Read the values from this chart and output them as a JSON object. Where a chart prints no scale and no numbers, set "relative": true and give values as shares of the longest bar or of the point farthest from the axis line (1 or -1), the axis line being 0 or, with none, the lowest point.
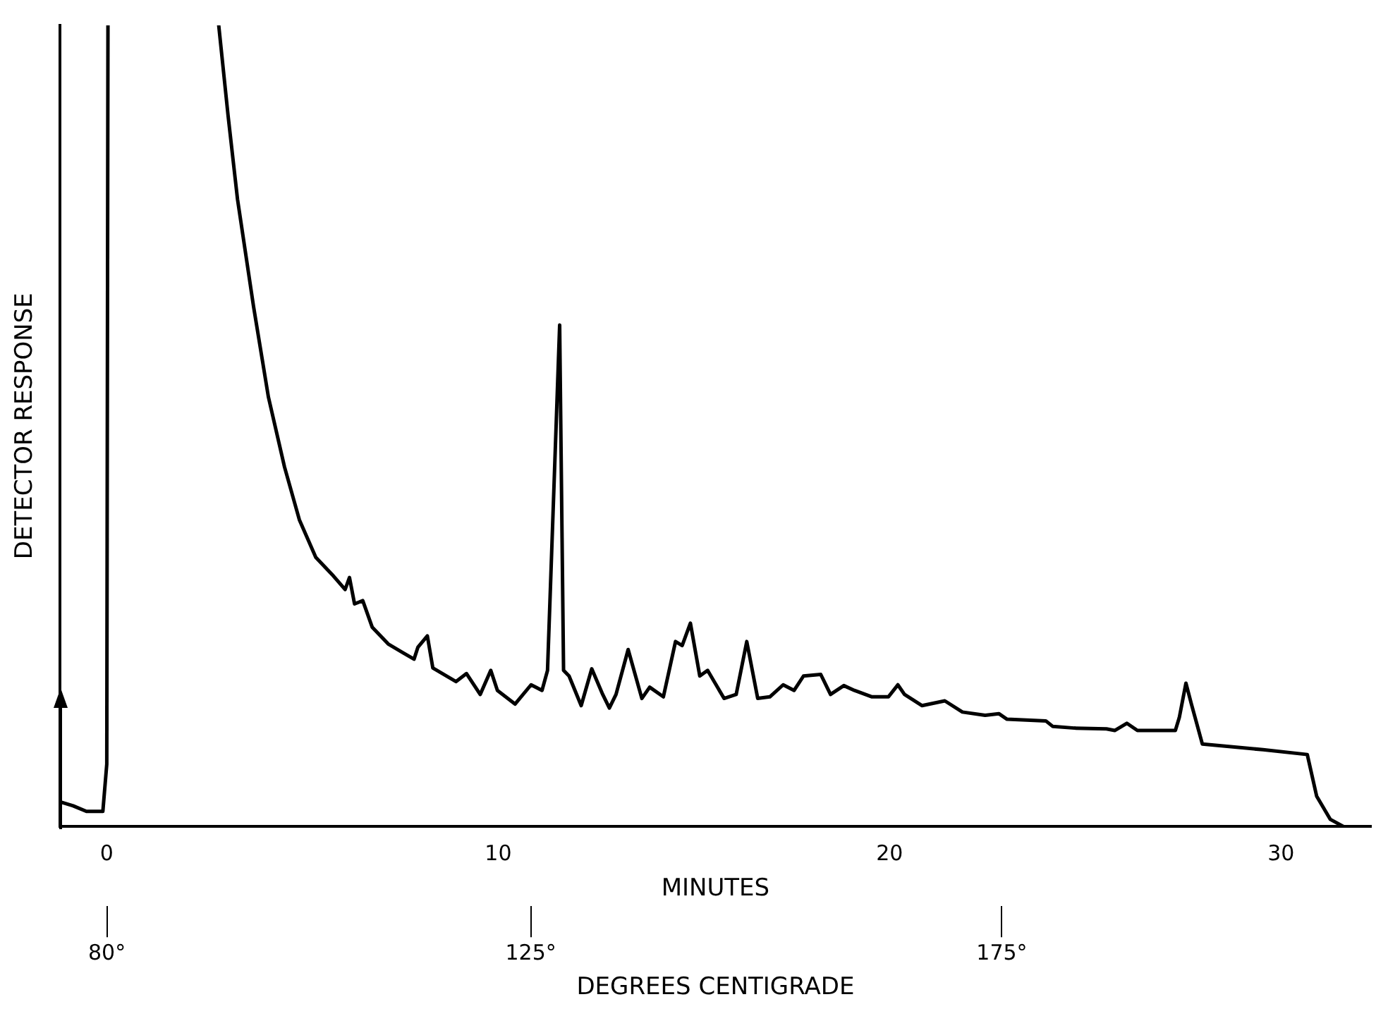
{
  "chart_data": {
    "type": "line",
    "relative": true,
    "xlabel": "MINUTES",
    "ylabel": "DETECTOR RESPONSE",
    "x2label": "DEGREES CENTIGRADE",
    "xlim": [
      -1.2,
      32.3
    ],
    "xticks": [
      0,
      10,
      20,
      30
    ],
    "x2lim": [
      75,
      214.2
    ],
    "x2ticks": [
      {
        "value": 80,
        "label": "80°"
      },
      {
        "value": 125,
        "label": "125°"
      },
      {
        "value": 175,
        "label": "175°"
      }
    ],
    "grid": false,
    "legend": false,
    "marker": "none",
    "line_style": "solid",
    "series": [
      {
        "color": "#000000",
        "x": [
          -1.2,
          -0.86,
          -0.52,
          -0.1,
          0.0,
          0.03,
          1.5,
          2.86,
          3.1,
          3.34,
          3.75,
          4.13,
          4.54,
          4.92,
          5.34,
          5.75,
          6.09,
          6.2,
          6.33,
          6.54,
          6.78,
          7.19,
          7.57,
          7.85,
          7.95,
          8.19,
          8.33,
          8.92,
          9.19,
          9.54,
          9.81,
          9.98,
          10.43,
          10.84,
          11.12,
          11.26,
          11.57,
          11.67,
          11.81,
          12.12,
          12.39,
          12.67,
          12.84,
          13.01,
          13.32,
          13.67,
          13.87,
          14.22,
          14.53,
          14.7,
          14.91,
          15.15,
          15.35,
          15.77,
          16.08,
          16.35,
          16.63,
          16.94,
          17.28,
          17.56,
          17.8,
          18.24,
          18.49,
          18.83,
          19.1,
          19.55,
          19.97,
          20.21,
          20.38,
          20.83,
          21.41,
          21.86,
          22.44,
          22.79,
          23.0,
          23.99,
          24.17,
          24.72,
          25.54,
          25.75,
          26.06,
          26.33,
          27.3,
          27.4,
          27.57,
          27.71,
          27.99,
          29.54,
          30.67,
          30.91,
          31.26,
          31.6,
          32.3
        ],
        "values": [
          0.031,
          0.026,
          0.019,
          0.019,
          0.078,
          1.0,
          null,
          1.0,
          0.887,
          0.783,
          0.649,
          0.536,
          0.449,
          0.383,
          0.336,
          0.315,
          0.296,
          0.311,
          0.278,
          0.282,
          0.249,
          0.228,
          0.217,
          0.209,
          0.224,
          0.238,
          0.198,
          0.181,
          0.191,
          0.165,
          0.195,
          0.17,
          0.153,
          0.177,
          0.17,
          0.195,
          0.626,
          0.195,
          0.188,
          0.151,
          0.197,
          0.165,
          0.148,
          0.165,
          0.221,
          0.16,
          0.174,
          0.162,
          0.231,
          0.226,
          0.254,
          0.188,
          0.195,
          0.16,
          0.165,
          0.231,
          0.16,
          0.162,
          0.177,
          0.17,
          0.188,
          0.19,
          0.165,
          0.176,
          0.17,
          0.162,
          0.162,
          0.177,
          0.165,
          0.151,
          0.157,
          0.143,
          0.139,
          0.141,
          0.134,
          0.132,
          0.125,
          0.123,
          0.122,
          0.12,
          0.129,
          0.12,
          0.12,
          0.136,
          0.179,
          0.153,
          0.103,
          0.096,
          0.09,
          0.038,
          0.009,
          0.0,
          0.0
        ]
      }
    ]
  }
}
